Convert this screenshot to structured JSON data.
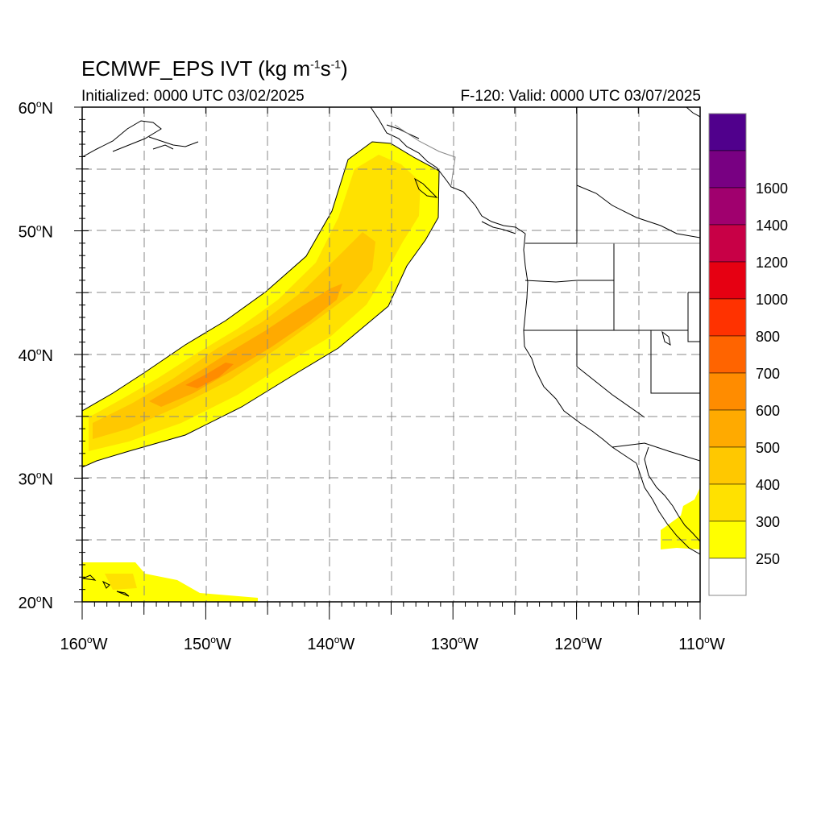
{
  "title": {
    "main": "ECMWF_EPS IVT (kg m",
    "sup1": "-1",
    "mid": "s",
    "sup2": "-1",
    "end": ")"
  },
  "subtitle_left": "Initialized: 0000 UTC 03/02/2025",
  "subtitle_right": "F-120: Valid: 0000 UTC 03/07/2025",
  "axes": {
    "lat_labels": [
      {
        "value": 60,
        "text": "60",
        "hem": "N"
      },
      {
        "value": 50,
        "text": "50",
        "hem": "N"
      },
      {
        "value": 40,
        "text": "40",
        "hem": "N"
      },
      {
        "value": 30,
        "text": "30",
        "hem": "N"
      },
      {
        "value": 20,
        "text": "20",
        "hem": "N"
      }
    ],
    "lon_labels": [
      {
        "value": -160,
        "text": "160",
        "hem": "W"
      },
      {
        "value": -150,
        "text": "150",
        "hem": "W"
      },
      {
        "value": -140,
        "text": "140",
        "hem": "W"
      },
      {
        "value": -130,
        "text": "130",
        "hem": "W"
      },
      {
        "value": -120,
        "text": "120",
        "hem": "W"
      },
      {
        "value": -110,
        "text": "110",
        "hem": "W"
      }
    ],
    "lon_range": [
      -160,
      -110
    ],
    "lat_range": [
      20,
      60
    ],
    "grid": true
  },
  "colorbar": {
    "labels": [
      "250",
      "300",
      "400",
      "500",
      "600",
      "700",
      "800",
      "1000",
      "1200",
      "1400",
      "1600"
    ],
    "colors": [
      "#ffffff",
      "#ffff00",
      "#ffe100",
      "#ffc800",
      "#ffaa00",
      "#ff8c00",
      "#ff6400",
      "#ff3200",
      "#e60012",
      "#c80046",
      "#a0006e",
      "#780082",
      "#50008c"
    ]
  },
  "colors": {
    "ivt_250": "#ffff00",
    "ivt_300": "#ffe100",
    "ivt_400": "#ffc800",
    "ivt_500": "#ffaa00",
    "ivt_600": "#ff8c00"
  }
}
